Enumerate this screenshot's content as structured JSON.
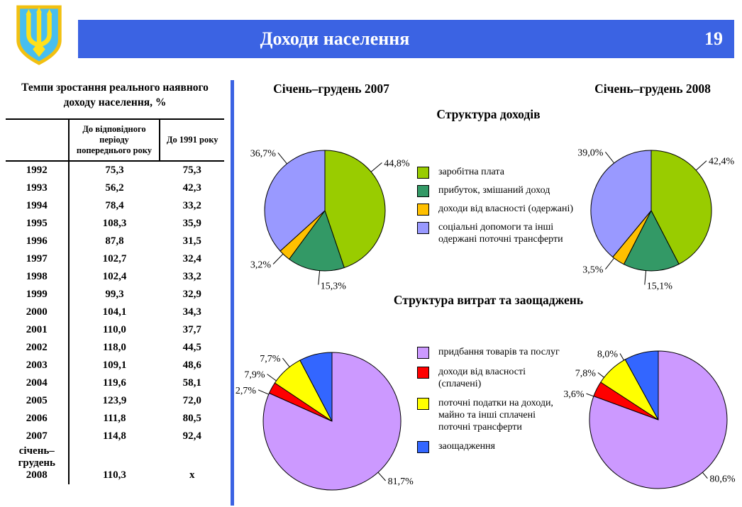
{
  "header": {
    "title": "Доходи населення",
    "page_number": "19"
  },
  "colors": {
    "accent_blue": "#3b63e3",
    "emblem_shield": "#47bef0",
    "emblem_trident": "#ffe01a",
    "emblem_border": "#f2c010"
  },
  "table": {
    "title": "Темпи зростання реального наявного доходу населення, %",
    "columns": [
      "",
      "До відповідного періоду попереднього року",
      "До 1991 року"
    ],
    "rows": [
      [
        "1992",
        "75,3",
        "75,3"
      ],
      [
        "1993",
        "56,2",
        "42,3"
      ],
      [
        "1994",
        "78,4",
        "33,2"
      ],
      [
        "1995",
        "108,3",
        "35,9"
      ],
      [
        "1996",
        "87,8",
        "31,5"
      ],
      [
        "1997",
        "102,7",
        "32,4"
      ],
      [
        "1998",
        "102,4",
        "33,2"
      ],
      [
        "1999",
        "99,3",
        "32,9"
      ],
      [
        "2000",
        "104,1",
        "34,3"
      ],
      [
        "2001",
        "110,0",
        "37,7"
      ],
      [
        "2002",
        "118,0",
        "44,5"
      ],
      [
        "2003",
        "109,1",
        "48,6"
      ],
      [
        "2004",
        "119,6",
        "58,1"
      ],
      [
        "2005",
        "123,9",
        "72,0"
      ],
      [
        "2006",
        "111,8",
        "80,5"
      ],
      [
        "2007",
        "114,8",
        "92,4"
      ],
      [
        "січень–грудень 2008",
        "110,3",
        "x"
      ]
    ]
  },
  "chart_data": [
    {
      "type": "pie",
      "title": "Структура доходів",
      "categories": [
        "заробітна плата",
        "прибуток, змішаний доход",
        "доходи від власності (одержані)",
        "соціальні допомоги та інші одержані поточні трансферти"
      ],
      "colors": [
        "#99cc00",
        "#339966",
        "#ffc000",
        "#9999ff"
      ],
      "legend_position": "center-between-pies",
      "series": [
        {
          "name": "Січень–грудень 2007",
          "values": [
            44.8,
            15.3,
            3.2,
            36.7
          ],
          "labels": [
            "44,8%",
            "15,3%",
            "3,2%",
            "36,7%"
          ],
          "label_angles": [
            50,
            185,
            224,
            321
          ]
        },
        {
          "name": "Січень–грудень 2008",
          "values": [
            42.4,
            15.1,
            3.5,
            39.0
          ],
          "labels": [
            "42,4%",
            "15,1%",
            "3,5%",
            "39,0%"
          ],
          "label_angles": [
            48,
            185,
            218,
            322
          ]
        }
      ]
    },
    {
      "type": "pie",
      "title": "Структура витрат та заощаджень",
      "categories": [
        "придбання товарів та послуг",
        "доходи від власності (сплачені)",
        "поточні податки на доходи, майно та інші сплачені поточні трансферти",
        "заощадження"
      ],
      "colors": [
        "#cc99ff",
        "#ff0000",
        "#ffff00",
        "#3366ff"
      ],
      "legend_position": "center-between-pies",
      "series": [
        {
          "name": "Січень–грудень 2007",
          "values": [
            81.7,
            2.7,
            7.9,
            7.7
          ],
          "labels": [
            "81,7%",
            "2,7%",
            "7,9%",
            "7,7%"
          ],
          "label_angles": [
            138,
            293,
            306,
            322
          ]
        },
        {
          "name": "Січень–грудень 2008",
          "values": [
            80.6,
            3.6,
            7.8,
            8.0
          ],
          "labels": [
            "80,6%",
            "3,6%",
            "7,8%",
            "8,0%"
          ],
          "label_angles": [
            140,
            290,
            308,
            330
          ]
        }
      ]
    }
  ]
}
